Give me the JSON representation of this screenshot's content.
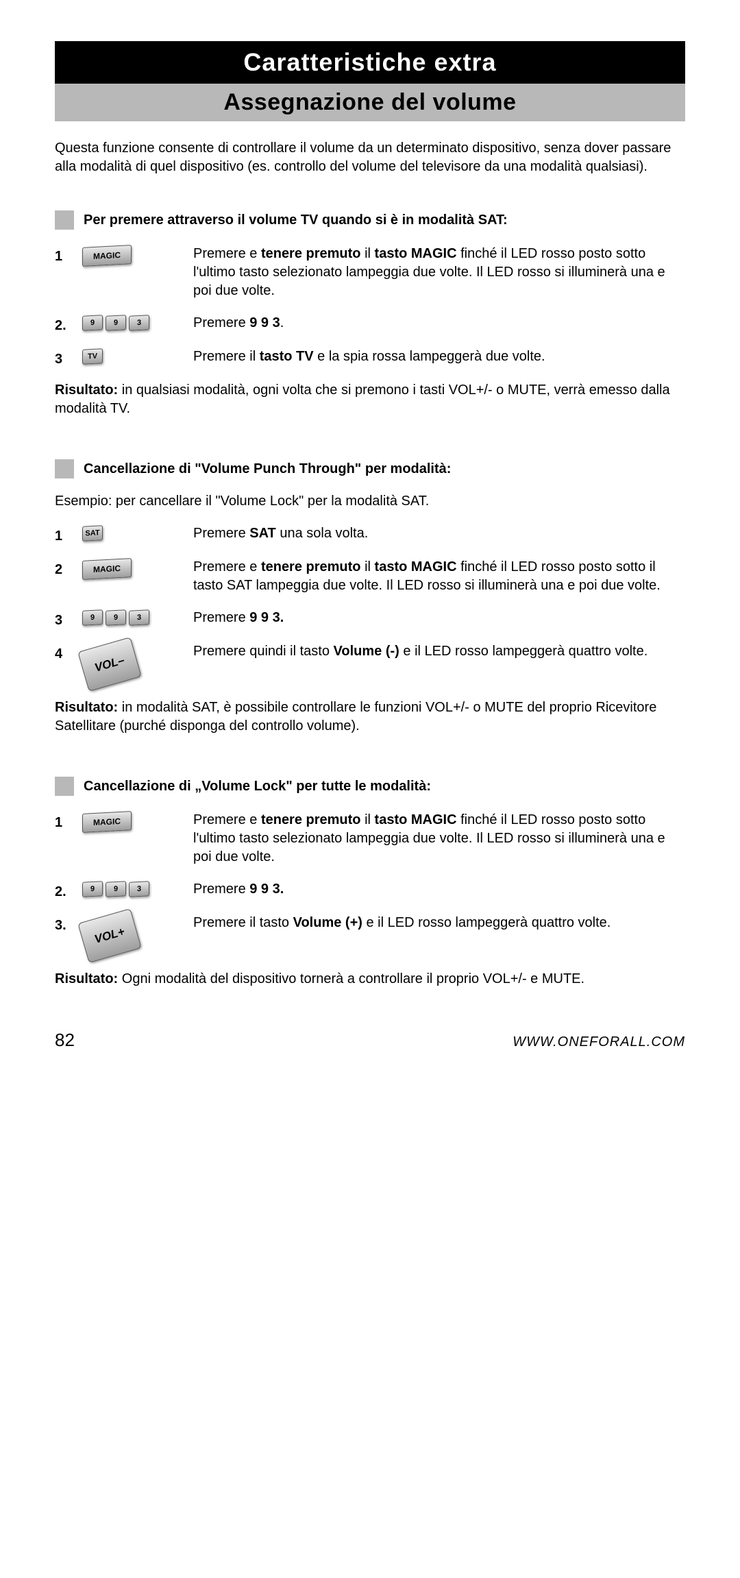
{
  "headers": {
    "black": "Caratteristiche extra",
    "grey": "Assegnazione del volume"
  },
  "intro": "Questa funzione consente di controllare il volume da un determinato dispositivo, senza dover passare alla modalità di quel dispositivo (es. controllo del volume del televisore da una modalità qualsiasi).",
  "sections": [
    {
      "title": "Per premere attraverso il volume TV quando si è in modalità SAT:",
      "sub_intro": "",
      "steps": [
        {
          "num": "1",
          "icons": [
            {
              "type": "wide",
              "label": "MAGIC"
            }
          ],
          "text_parts": [
            {
              "t": "Premere e ",
              "b": false
            },
            {
              "t": "tenere premuto",
              "b": true
            },
            {
              "t": " il ",
              "b": false
            },
            {
              "t": "tasto MAGIC",
              "b": true
            },
            {
              "t": " finché il LED rosso posto sotto l'ultimo tasto selezionato lampeggia due volte. Il LED rosso si illuminerà una e poi due volte.",
              "b": false
            }
          ]
        },
        {
          "num": "2.",
          "icons": [
            {
              "type": "sm",
              "label": "9"
            },
            {
              "type": "sm",
              "label": "9"
            },
            {
              "type": "sm",
              "label": "3"
            }
          ],
          "text_parts": [
            {
              "t": "Premere ",
              "b": false
            },
            {
              "t": "9 9 3",
              "b": true
            },
            {
              "t": ".",
              "b": false
            }
          ]
        },
        {
          "num": "3",
          "icons": [
            {
              "type": "sm",
              "label": "TV"
            }
          ],
          "text_parts": [
            {
              "t": "Premere il ",
              "b": false
            },
            {
              "t": "tasto TV",
              "b": true
            },
            {
              "t": " e la spia rossa lampeggerà due volte.",
              "b": false
            }
          ]
        }
      ],
      "result_parts": [
        {
          "t": "Risultato:",
          "b": true
        },
        {
          "t": " in qualsiasi modalità, ogni volta che si premono i tasti VOL+/- o MUTE, verrà emesso dalla modalità TV.",
          "b": false
        }
      ]
    },
    {
      "title": "Cancellazione di \"Volume Punch Through\" per modalità:",
      "sub_intro": "Esempio: per cancellare il \"Volume Lock\" per la modalità SAT.",
      "steps": [
        {
          "num": "1",
          "icons": [
            {
              "type": "sm",
              "label": "SAT"
            }
          ],
          "text_parts": [
            {
              "t": "Premere ",
              "b": false
            },
            {
              "t": "SAT",
              "b": true
            },
            {
              "t": " una sola volta.",
              "b": false
            }
          ]
        },
        {
          "num": "2",
          "icons": [
            {
              "type": "wide",
              "label": "MAGIC"
            }
          ],
          "text_parts": [
            {
              "t": "Premere e ",
              "b": false
            },
            {
              "t": "tenere premuto",
              "b": true
            },
            {
              "t": " il ",
              "b": false
            },
            {
              "t": "tasto MAGIC",
              "b": true
            },
            {
              "t": " finché il LED rosso posto sotto il tasto SAT lampeggia due volte. Il LED rosso si illuminerà una e poi due volte.",
              "b": false
            }
          ]
        },
        {
          "num": "3",
          "icons": [
            {
              "type": "sm",
              "label": "9"
            },
            {
              "type": "sm",
              "label": "9"
            },
            {
              "type": "sm",
              "label": "3"
            }
          ],
          "text_parts": [
            {
              "t": "Premere ",
              "b": false
            },
            {
              "t": "9 9 3.",
              "b": true
            }
          ]
        },
        {
          "num": "4",
          "icons": [
            {
              "type": "vol",
              "label": "VOL–"
            }
          ],
          "text_parts": [
            {
              "t": "Premere quindi il tasto ",
              "b": false
            },
            {
              "t": "Volume (-)",
              "b": true
            },
            {
              "t": " e il LED rosso lampeggerà quattro volte.",
              "b": false
            }
          ]
        }
      ],
      "result_parts": [
        {
          "t": "Risultato:",
          "b": true
        },
        {
          "t": " in modalità SAT, è possibile controllare le funzioni VOL+/- o MUTE del proprio Ricevitore Satellitare (purché disponga del controllo volume).",
          "b": false
        }
      ]
    },
    {
      "title": "Cancellazione di „Volume Lock\"  per tutte le modalità:",
      "sub_intro": "",
      "steps": [
        {
          "num": "1",
          "icons": [
            {
              "type": "wide",
              "label": "MAGIC"
            }
          ],
          "text_parts": [
            {
              "t": "Premere e ",
              "b": false
            },
            {
              "t": "tenere premuto",
              "b": true
            },
            {
              "t": " il ",
              "b": false
            },
            {
              "t": "tasto MAGIC",
              "b": true
            },
            {
              "t": " finché il LED rosso posto sotto l'ultimo tasto selezionato lampeggia due volte. Il LED rosso si illuminerà una e poi due volte.",
              "b": false
            }
          ]
        },
        {
          "num": "2.",
          "icons": [
            {
              "type": "sm",
              "label": "9"
            },
            {
              "type": "sm",
              "label": "9"
            },
            {
              "type": "sm",
              "label": "3"
            }
          ],
          "text_parts": [
            {
              "t": "Premere ",
              "b": false
            },
            {
              "t": "9 9 3.",
              "b": true
            }
          ]
        },
        {
          "num": "3.",
          "icons": [
            {
              "type": "vol",
              "label": "VOL+"
            }
          ],
          "text_parts": [
            {
              "t": "Premere il tasto ",
              "b": false
            },
            {
              "t": "Volume (+)",
              "b": true
            },
            {
              "t": " e il LED rosso lampeggerà quattro volte.",
              "b": false
            }
          ]
        }
      ],
      "result_parts": [
        {
          "t": "Risultato:",
          "b": true
        },
        {
          "t": " Ogni modalità del dispositivo tornerà a controllare il proprio VOL+/- e MUTE.",
          "b": false
        }
      ]
    }
  ],
  "footer": {
    "page": "82",
    "url": "WWW.ONEFORALL.COM"
  }
}
